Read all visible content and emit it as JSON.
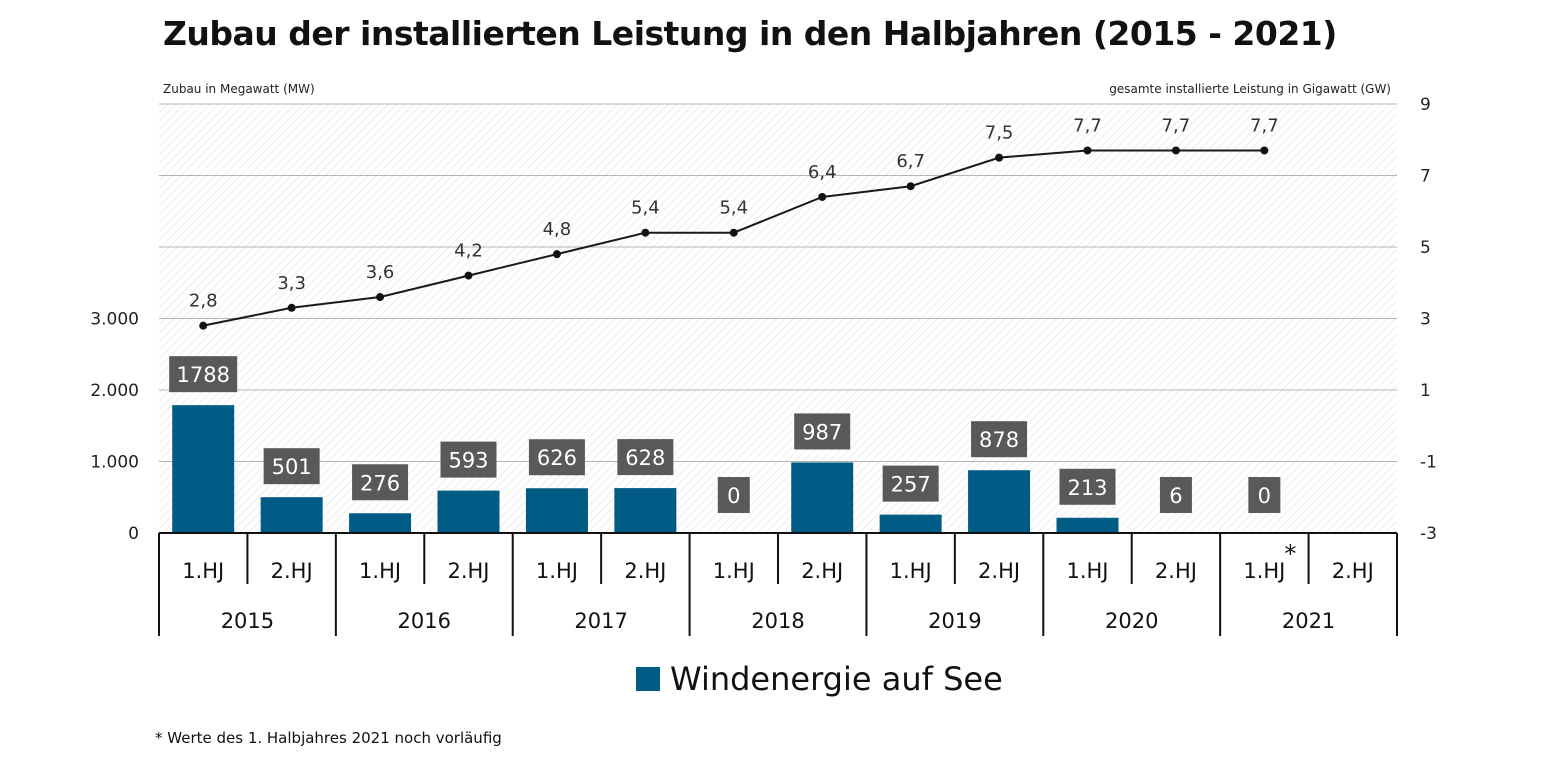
{
  "title": "Zubau der installierten Leistung in den Halbjahren (2015 - 2021)",
  "left_axis_title": "Zubau in Megawatt (MW)",
  "right_axis_title": "gesamte installierte Leistung in Gigawatt (GW)",
  "legend": {
    "label": "Windenergie auf See",
    "color": "#005b85"
  },
  "footnote": "* Werte des 1. Halbjahres 2021 noch vorläufig",
  "chart_data": {
    "type": "bar",
    "title": "Zubau der installierten Leistung in den Halbjahren (2015 - 2021)",
    "categories": [
      "1.HJ",
      "2.HJ",
      "1.HJ",
      "2.HJ",
      "1.HJ",
      "2.HJ",
      "1.HJ",
      "2.HJ",
      "1.HJ",
      "2.HJ",
      "1.HJ",
      "2.HJ",
      "1.HJ",
      "2.HJ"
    ],
    "category_markers": [
      "",
      "",
      "",
      "",
      "",
      "",
      "",
      "",
      "",
      "",
      "",
      "",
      "*",
      ""
    ],
    "years": [
      "2015",
      "2016",
      "2017",
      "2018",
      "2019",
      "2020",
      "2021"
    ],
    "series": [
      {
        "name": "Windenergie auf See",
        "type": "bar",
        "axis": "left",
        "color": "#005b85",
        "values": [
          1788,
          501,
          276,
          593,
          626,
          628,
          0,
          987,
          257,
          878,
          213,
          6,
          0,
          null
        ],
        "labels": [
          "1788",
          "501",
          "276",
          "593",
          "626",
          "628",
          "0",
          "987",
          "257",
          "878",
          "213",
          "6",
          "0",
          ""
        ]
      },
      {
        "name": "gesamte installierte Leistung",
        "type": "line",
        "axis": "right",
        "color": "#1a1a1a",
        "values": [
          2.8,
          3.3,
          3.6,
          4.2,
          4.8,
          5.4,
          5.4,
          6.4,
          6.7,
          7.5,
          7.7,
          7.7,
          7.7,
          null
        ],
        "labels": [
          "2,8",
          "3,3",
          "3,6",
          "4,2",
          "4,8",
          "5,4",
          "5,4",
          "6,4",
          "6,7",
          "7,5",
          "7,7",
          "7,7",
          "7,7",
          ""
        ]
      }
    ],
    "ylabel": "Zubau in Megawatt (MW)",
    "y2label": "gesamte installierte Leistung in Gigawatt (GW)",
    "ylim": [
      0,
      6000
    ],
    "y_ticks": [
      0,
      1000,
      2000,
      3000
    ],
    "y_tick_labels": [
      "0",
      "1.000",
      "2.000",
      "3.000"
    ],
    "y2lim": [
      -3,
      9
    ],
    "y2_ticks": [
      -3,
      -1,
      1,
      3,
      5,
      7,
      9
    ],
    "y2_tick_labels": [
      "-3",
      "-1",
      "1",
      "3",
      "5",
      "7",
      "9"
    ],
    "grid": true
  }
}
